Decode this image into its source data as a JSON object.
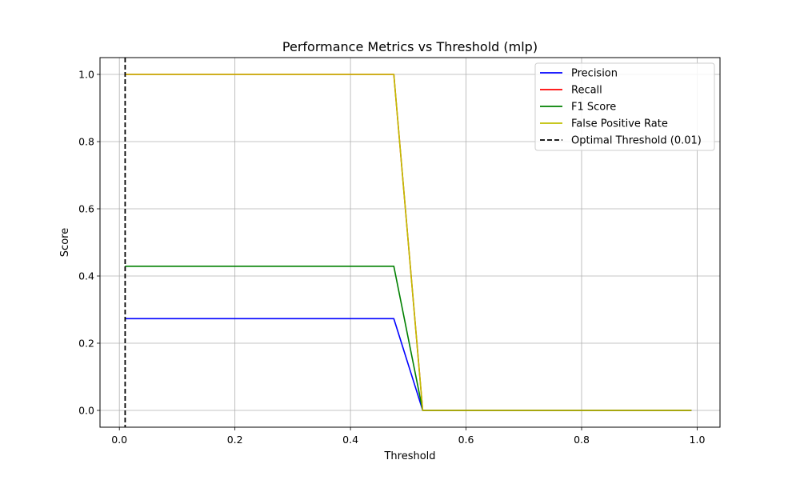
{
  "chart_data": {
    "type": "line",
    "title": "Performance Metrics vs Threshold (mlp)",
    "xlabel": "Threshold",
    "ylabel": "Score",
    "xlim": [
      -0.0335,
      1.0395
    ],
    "ylim": [
      -0.05,
      1.05
    ],
    "xticks": [
      0.0,
      0.2,
      0.4,
      0.6,
      0.8,
      1.0
    ],
    "xtick_labels": [
      "0.0",
      "0.2",
      "0.4",
      "0.6",
      "0.8",
      "1.0"
    ],
    "yticks": [
      0.0,
      0.2,
      0.4,
      0.6,
      0.8,
      1.0
    ],
    "ytick_labels": [
      "0.0",
      "0.2",
      "0.4",
      "0.6",
      "0.8",
      "1.0"
    ],
    "grid": true,
    "legend_position": "top-right",
    "series": [
      {
        "name": "Precision",
        "color": "#0000ff",
        "dash": "solid",
        "x": [
          0.01,
          0.475,
          0.525,
          0.99
        ],
        "y": [
          0.273,
          0.273,
          0.0,
          0.0
        ]
      },
      {
        "name": "Recall",
        "color": "#ff0000",
        "dash": "solid",
        "x": [
          0.01,
          0.475,
          0.525,
          0.99
        ],
        "y": [
          1.0,
          1.0,
          0.0,
          0.0
        ]
      },
      {
        "name": "F1 Score",
        "color": "#008000",
        "dash": "solid",
        "x": [
          0.01,
          0.475,
          0.525,
          0.99
        ],
        "y": [
          0.429,
          0.429,
          0.0,
          0.0
        ]
      },
      {
        "name": "False Positive Rate",
        "color": "#bfbf00",
        "dash": "solid",
        "x": [
          0.01,
          0.475,
          0.525,
          0.99
        ],
        "y": [
          1.0,
          1.0,
          0.0,
          0.0
        ]
      }
    ],
    "vlines": [
      {
        "name": "Optimal Threshold (0.01)",
        "x": 0.01,
        "color": "#000000",
        "dash": "dashed"
      }
    ]
  }
}
